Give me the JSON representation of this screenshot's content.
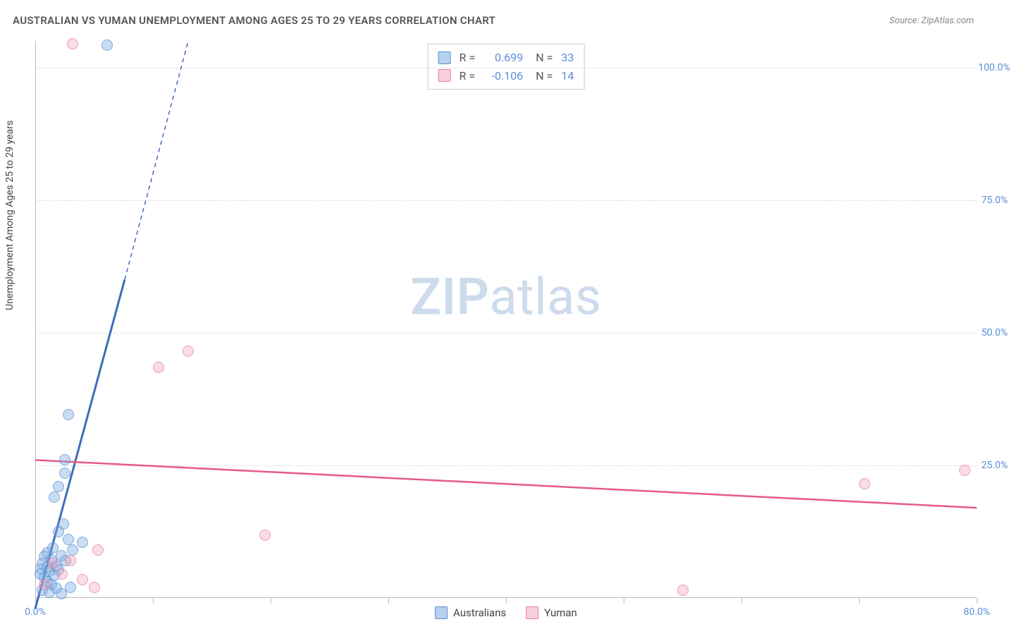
{
  "title": "AUSTRALIAN VS YUMAN UNEMPLOYMENT AMONG AGES 25 TO 29 YEARS CORRELATION CHART",
  "source": "Source: ZipAtlas.com",
  "watermark_zip": "ZIP",
  "watermark_atlas": "atlas",
  "y_axis_label": "Unemployment Among Ages 25 to 29 years",
  "chart": {
    "type": "scatter",
    "background_color": "#ffffff",
    "grid_color": "#dddddd",
    "axis_color": "#bbbbbb",
    "tick_label_color": "#5b8dd6",
    "xlim": [
      0,
      80
    ],
    "ylim": [
      0,
      105
    ],
    "x_ticks": [
      0,
      10,
      20,
      30,
      40,
      50,
      60,
      70,
      80
    ],
    "x_tick_labels": {
      "0": "0.0%",
      "80": "80.0%"
    },
    "y_ticks": [
      25,
      50,
      75,
      100
    ],
    "y_tick_labels": {
      "25": "25.0%",
      "50": "50.0%",
      "75": "75.0%",
      "100": "100.0%"
    },
    "series": [
      {
        "name": "Australians",
        "color_fill": "rgba(122,172,224,0.55)",
        "color_stroke": "#5b8dd6",
        "marker_size": 16,
        "R": "0.699",
        "N": "33",
        "trend": {
          "x1": 0,
          "y1": -2,
          "x2": 7.6,
          "y2": 60,
          "solid_until_y": 60,
          "x3": 13.0,
          "y3": 105,
          "color": "#3d6db8",
          "width": 3
        },
        "points": [
          {
            "x": 6.1,
            "y": 104.2
          },
          {
            "x": 2.8,
            "y": 34.5
          },
          {
            "x": 2.5,
            "y": 26.0
          },
          {
            "x": 2.5,
            "y": 23.5
          },
          {
            "x": 2.0,
            "y": 21.0
          },
          {
            "x": 1.6,
            "y": 19.0
          },
          {
            "x": 2.4,
            "y": 14.0
          },
          {
            "x": 2.0,
            "y": 12.5
          },
          {
            "x": 2.8,
            "y": 11.0
          },
          {
            "x": 4.0,
            "y": 10.5
          },
          {
            "x": 1.5,
            "y": 9.5
          },
          {
            "x": 3.2,
            "y": 9.0
          },
          {
            "x": 1.0,
            "y": 8.5
          },
          {
            "x": 2.2,
            "y": 8.0
          },
          {
            "x": 0.8,
            "y": 7.8
          },
          {
            "x": 1.4,
            "y": 7.2
          },
          {
            "x": 2.6,
            "y": 7.0
          },
          {
            "x": 0.6,
            "y": 6.5
          },
          {
            "x": 1.8,
            "y": 6.0
          },
          {
            "x": 1.0,
            "y": 5.8
          },
          {
            "x": 0.5,
            "y": 5.5
          },
          {
            "x": 2.0,
            "y": 5.3
          },
          {
            "x": 1.2,
            "y": 5.0
          },
          {
            "x": 0.4,
            "y": 4.5
          },
          {
            "x": 1.6,
            "y": 4.2
          },
          {
            "x": 0.8,
            "y": 3.8
          },
          {
            "x": 1.0,
            "y": 3.0
          },
          {
            "x": 1.4,
            "y": 2.5
          },
          {
            "x": 3.0,
            "y": 2.0
          },
          {
            "x": 1.8,
            "y": 1.8
          },
          {
            "x": 0.6,
            "y": 1.5
          },
          {
            "x": 1.2,
            "y": 1.0
          },
          {
            "x": 2.2,
            "y": 0.8
          }
        ]
      },
      {
        "name": "Yuman",
        "color_fill": "rgba(240,150,175,0.45)",
        "color_stroke": "#e87ca0",
        "marker_size": 16,
        "R": "-0.106",
        "N": "14",
        "trend": {
          "x1": 0,
          "y1": 26.0,
          "x2": 80,
          "y2": 17.0,
          "color": "#e65a8a",
          "width": 2.5
        },
        "points": [
          {
            "x": 3.2,
            "y": 104.5
          },
          {
            "x": 13.0,
            "y": 46.5
          },
          {
            "x": 10.5,
            "y": 43.5
          },
          {
            "x": 79.0,
            "y": 24.0
          },
          {
            "x": 70.5,
            "y": 21.5
          },
          {
            "x": 19.5,
            "y": 11.8
          },
          {
            "x": 5.3,
            "y": 9.0
          },
          {
            "x": 3.0,
            "y": 7.0
          },
          {
            "x": 1.5,
            "y": 6.5
          },
          {
            "x": 2.3,
            "y": 4.5
          },
          {
            "x": 4.0,
            "y": 3.5
          },
          {
            "x": 5.0,
            "y": 2.0
          },
          {
            "x": 0.8,
            "y": 2.5
          },
          {
            "x": 55.0,
            "y": 1.5
          }
        ]
      }
    ]
  },
  "legend_bottom": [
    {
      "swatch": "blue",
      "label": "Australians"
    },
    {
      "swatch": "pink",
      "label": "Yuman"
    }
  ]
}
